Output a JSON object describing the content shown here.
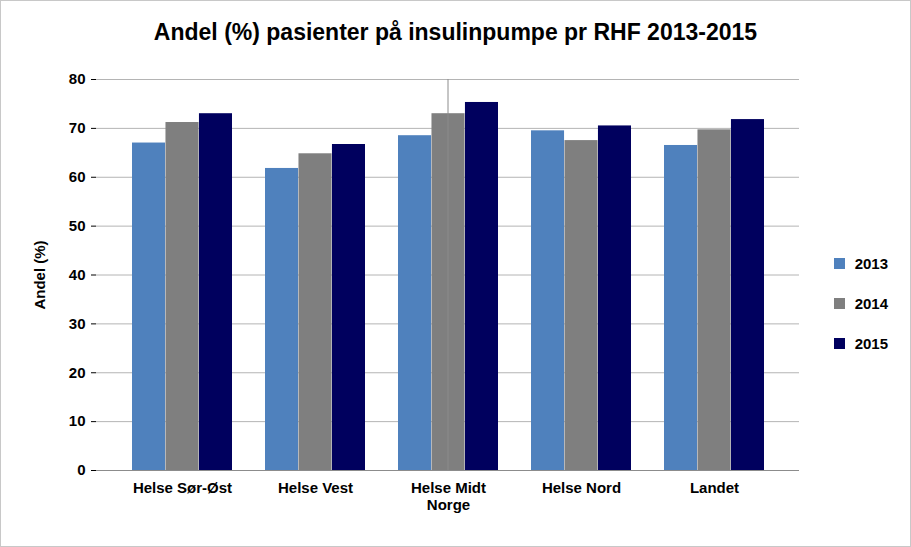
{
  "chart_data": {
    "type": "bar",
    "title": "Andel (%) pasienter på insulinpumpe pr RHF 2013-2015",
    "y_label": "Andel (%)",
    "categories": [
      "Helse Sør-Øst",
      "Helse Vest",
      "Helse Midt\nNorge",
      "Helse Nord",
      "Landet"
    ],
    "series": [
      {
        "name": "2013",
        "color": "#4f81bd",
        "values": [
          67.0,
          61.8,
          68.5,
          69.5,
          66.5
        ]
      },
      {
        "name": "2014",
        "color": "#7f7f7f",
        "values": [
          71.2,
          64.8,
          73.0,
          67.5,
          69.7
        ]
      },
      {
        "name": "2015",
        "color": "#00005e",
        "values": [
          73.0,
          66.7,
          75.3,
          70.5,
          71.8
        ]
      }
    ],
    "ylim": [
      0,
      80
    ],
    "yticks": [
      0,
      10,
      20,
      30,
      40,
      50,
      60,
      70,
      80
    ],
    "grid": true,
    "legend": "right"
  }
}
